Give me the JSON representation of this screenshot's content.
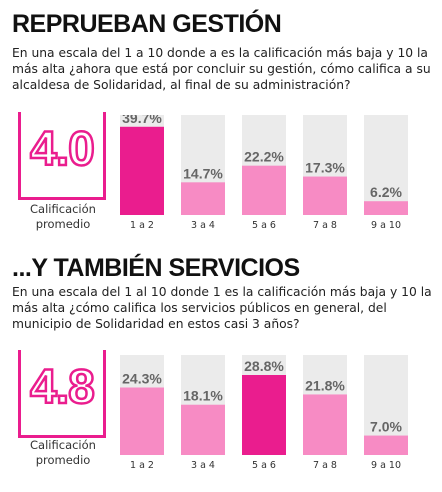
{
  "sections": [
    {
      "title": "REPRUEBAN GESTIÓN",
      "question": "En una escala del 1 a 10 donde a es la calificación más baja y 10 la más alta ¿ahora que está por concluir su gestión, cómo califica a su alcaldesa de Solidaridad, al final de su administración?",
      "score": "4.0",
      "score_label": "Calificación promedio"
    },
    {
      "title": "...Y TAMBIÉN SERVICIOS",
      "question": "En una escala del 1 al 10 donde 1 es la calificación más baja y 10 la más alta ¿cómo califica los servicios públicos en general, del municipio de Solidaridad en estos casi 3 años?",
      "score": "4.8",
      "score_label": "Calificación promedio"
    }
  ],
  "colors": {
    "accent": "#ea1d8e",
    "light": "#f78bc4",
    "background_bar": "#ebebeb"
  },
  "chart_data": [
    {
      "type": "bar",
      "categories": [
        "1 a 2",
        "3 a 4",
        "5 a 6",
        "7 a 8",
        "9 a 10"
      ],
      "values": [
        39.7,
        14.7,
        22.2,
        17.3,
        6.2
      ],
      "labels": [
        "39.7%",
        "14.7%",
        "22.2%",
        "17.3%",
        "6.2%"
      ],
      "highlight_index": 0,
      "ylim": [
        0,
        45
      ]
    },
    {
      "type": "bar",
      "categories": [
        "1 a 2",
        "3 a 4",
        "5 a 6",
        "7 a 8",
        "9 a 10"
      ],
      "values": [
        24.3,
        18.1,
        28.8,
        21.8,
        7.0
      ],
      "labels": [
        "24.3%",
        "18.1%",
        "28.8%",
        "21.8%",
        "7.0%"
      ],
      "highlight_index": 2,
      "ylim": [
        0,
        36
      ]
    }
  ]
}
